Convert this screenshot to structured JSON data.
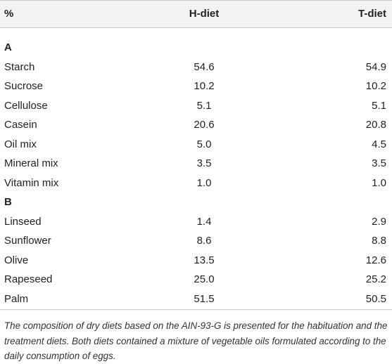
{
  "table": {
    "header": [
      "%",
      "H-diet",
      "T-diet"
    ],
    "sections": [
      {
        "label": "A",
        "rows": [
          [
            "Starch",
            "54.6",
            "54.9"
          ],
          [
            "Sucrose",
            "10.2",
            "10.2"
          ],
          [
            "Cellulose",
            "5.1",
            "5.1"
          ],
          [
            "Casein",
            "20.6",
            "20.8"
          ],
          [
            "Oil mix",
            "5.0",
            "4.5"
          ],
          [
            "Mineral mix",
            "3.5",
            "3.5"
          ],
          [
            "Vitamin mix",
            "1.0",
            "1.0"
          ]
        ]
      },
      {
        "label": "B",
        "rows": [
          [
            "Linseed",
            "1.4",
            "2.9"
          ],
          [
            "Sunflower",
            "8.6",
            "8.8"
          ],
          [
            "Olive",
            "13.5",
            "12.6"
          ],
          [
            "Rapeseed",
            "25.0",
            "25.2"
          ],
          [
            "Palm",
            "51.5",
            "50.5"
          ]
        ]
      }
    ]
  },
  "caption": "The composition of dry diets based on the AIN-93-G is presented for the habituation and the treatment diets. Both diets contained a mixture of vegetable oils formulated according to the daily consumption of eggs."
}
